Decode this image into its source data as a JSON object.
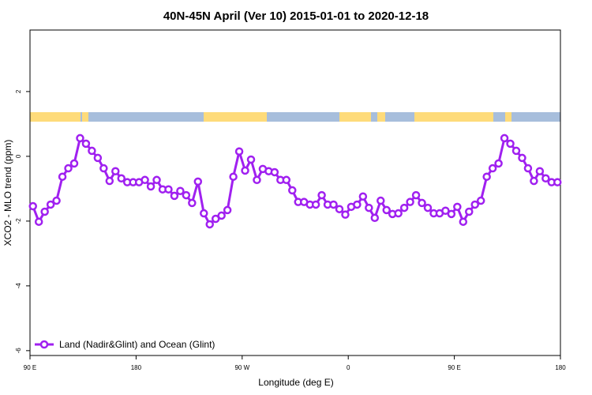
{
  "chart_data": {
    "type": "line",
    "title": "40N-45N April (Ver 10)   2015-01-01 to 2020-12-18",
    "xlabel": "Longitude (deg E)",
    "ylabel": "XCO2 - MLO trend (ppm)",
    "x": [
      92.5,
      97.5,
      102.5,
      107.5,
      112.5,
      117.5,
      122.5,
      127.5,
      132.5,
      137.5,
      142.5,
      147.5,
      152.5,
      157.5,
      162.5,
      167.5,
      172.5,
      177.5,
      182.5,
      187.5,
      192.5,
      197.5,
      202.5,
      207.5,
      212.5,
      217.5,
      222.5,
      227.5,
      232.5,
      237.5,
      242.5,
      247.5,
      252.5,
      257.5,
      262.5,
      267.5,
      272.5,
      277.5,
      282.5,
      287.5,
      292.5,
      297.5,
      302.5,
      307.5,
      312.5,
      317.5,
      322.5,
      327.5,
      332.5,
      337.5,
      342.5,
      347.5,
      352.5,
      357.5,
      362.5,
      367.5,
      372.5,
      377.5,
      382.5,
      387.5,
      392.5,
      397.5,
      402.5,
      407.5,
      412.5,
      417.5,
      422.5,
      427.5,
      432.5,
      437.5,
      442.5,
      447.5,
      452.5,
      457.5,
      462.5,
      467.5,
      472.5,
      477.5,
      482.5,
      487.5,
      492.5,
      497.5,
      502.5,
      507.5,
      512.5,
      517.5,
      522.5,
      527.5,
      532.5,
      537.5
    ],
    "series": [
      {
        "name": "Land (Nadir&Glint) and Ocean (Glint)",
        "color": "#a020f0",
        "values": [
          -1.54,
          -2.02,
          -1.71,
          -1.49,
          -1.37,
          -0.63,
          -0.37,
          -0.22,
          0.56,
          0.39,
          0.17,
          -0.05,
          -0.37,
          -0.76,
          -0.46,
          -0.68,
          -0.8,
          -0.8,
          -0.8,
          -0.73,
          -0.93,
          -0.73,
          -1.02,
          -1.02,
          -1.22,
          -1.07,
          -1.2,
          -1.44,
          -0.78,
          -1.76,
          -2.1,
          -1.93,
          -1.83,
          -1.66,
          -0.63,
          0.15,
          -0.44,
          -0.1,
          -0.73,
          -0.39,
          -0.46,
          -0.49,
          -0.73,
          -0.73,
          -1.05,
          -1.41,
          -1.41,
          -1.49,
          -1.49,
          -1.2,
          -1.49,
          -1.49,
          -1.63,
          -1.8,
          -1.56,
          -1.49,
          -1.24,
          -1.59,
          -1.9,
          -1.37,
          -1.66,
          -1.78,
          -1.76,
          -1.59,
          -1.41,
          -1.2,
          -1.44,
          -1.59,
          -1.76,
          -1.76,
          -1.68,
          -1.78,
          -1.56,
          -2.02,
          -1.71,
          -1.49,
          -1.37,
          -0.63,
          -0.37,
          -0.22,
          0.56,
          0.39,
          0.17,
          -0.05,
          -0.37,
          -0.76,
          -0.46,
          -0.68,
          -0.8,
          -0.8
        ]
      }
    ],
    "xlim": [
      90,
      540
    ],
    "xticks": [
      {
        "value": 90,
        "label": "90 E"
      },
      180,
      {
        "value": 270,
        "label": "90 W"
      },
      {
        "value": 360,
        "label": "0"
      },
      {
        "value": 450,
        "label": "90 E"
      },
      {
        "value": 540,
        "label": "180"
      }
    ],
    "ylim": [
      -6.15,
      3.9
    ],
    "yticks": [
      -6,
      -4,
      -2,
      0,
      2
    ],
    "legend": "bottom-left"
  }
}
